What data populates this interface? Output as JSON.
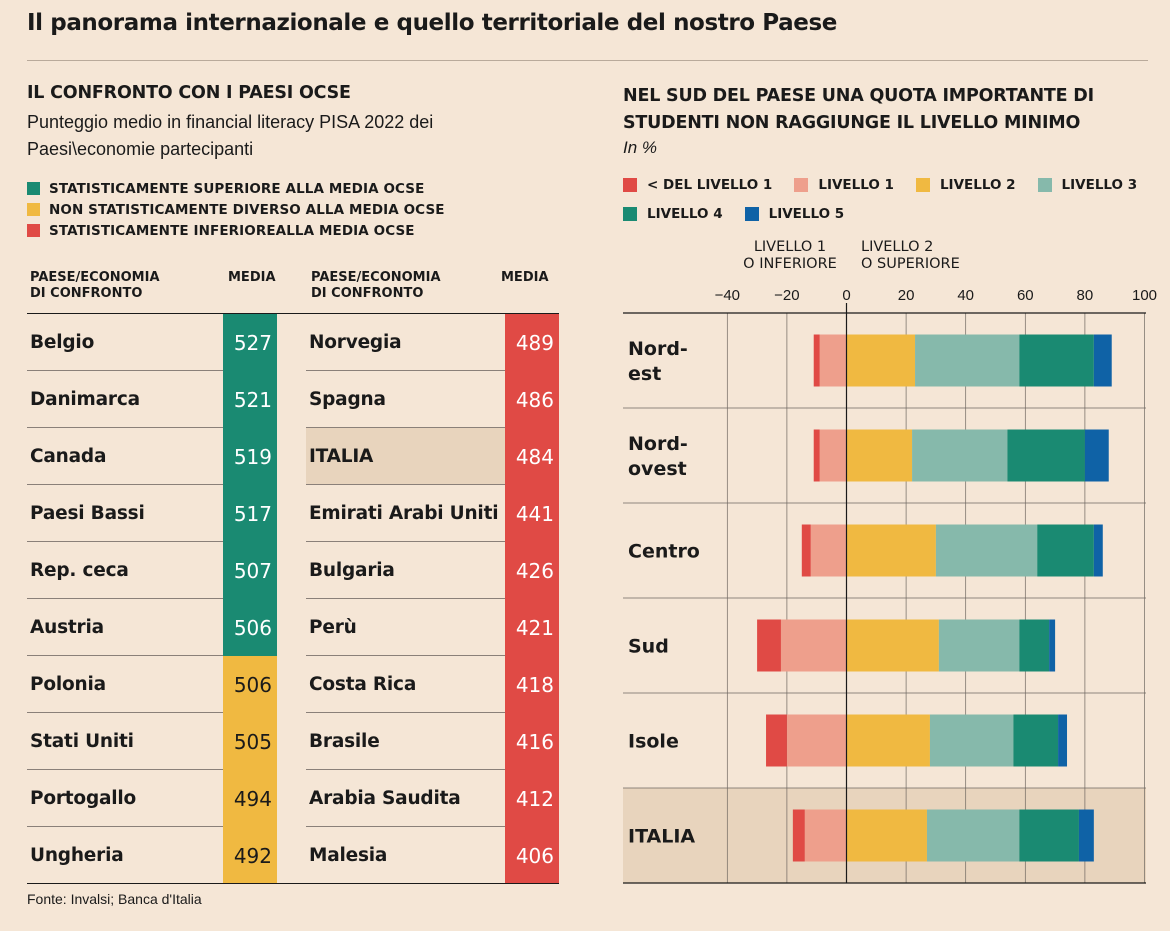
{
  "title": "Il panorama internazionale e quello territoriale del nostro Paese",
  "left": {
    "title": "IL CONFRONTO CON I PAESI OCSE",
    "subtitle": "Punteggio medio in financial literacy PISA 2022 dei Paesi\\economie partecipanti",
    "legend": [
      {
        "label": "STATISTICAMENTE SUPERIORE ALLA MEDIA OCSE",
        "color": "#1a8a72"
      },
      {
        "label": "NON STATISTICAMENTE DIVERSO ALLA MEDIA OCSE",
        "color": "#f0b941"
      },
      {
        "label": "STATISTICAMENTE INFERIOREALLA MEDIA OCSE",
        "color": "#e04a45"
      }
    ],
    "header_country": "PAESE/ECONOMIA\nDI CONFRONTO",
    "header_value": "MEDIA",
    "table_left": [
      {
        "country": "Belgio",
        "value": 527,
        "status": "superiore"
      },
      {
        "country": "Danimarca",
        "value": 521,
        "status": "superiore"
      },
      {
        "country": "Canada",
        "value": 519,
        "status": "superiore"
      },
      {
        "country": "Paesi Bassi",
        "value": 517,
        "status": "superiore"
      },
      {
        "country": "Rep. ceca",
        "value": 507,
        "status": "superiore"
      },
      {
        "country": "Austria",
        "value": 506,
        "status": "superiore"
      },
      {
        "country": "Polonia",
        "value": 506,
        "status": "non diverso"
      },
      {
        "country": "Stati Uniti",
        "value": 505,
        "status": "non diverso"
      },
      {
        "country": "Portogallo",
        "value": 494,
        "status": "non diverso"
      },
      {
        "country": "Ungheria",
        "value": 492,
        "status": "non diverso"
      }
    ],
    "table_right": [
      {
        "country": "Norvegia",
        "value": 489,
        "status": "inferiore"
      },
      {
        "country": "Spagna",
        "value": 486,
        "status": "inferiore"
      },
      {
        "country": "ITALIA",
        "value": 484,
        "status": "inferiore",
        "highlight": true
      },
      {
        "country": "Emirati Arabi Uniti",
        "value": 441,
        "status": "inferiore"
      },
      {
        "country": "Bulgaria",
        "value": 426,
        "status": "inferiore"
      },
      {
        "country": "Perù",
        "value": 421,
        "status": "inferiore"
      },
      {
        "country": "Costa Rica",
        "value": 418,
        "status": "inferiore"
      },
      {
        "country": "Brasile",
        "value": 416,
        "status": "inferiore"
      },
      {
        "country": "Arabia Saudita",
        "value": 412,
        "status": "inferiore"
      },
      {
        "country": "Malesia",
        "value": 406,
        "status": "inferiore"
      }
    ],
    "status_colors": {
      "superiore": "#1a8a72",
      "non diverso": "#f0b941",
      "inferiore": "#e04a45"
    }
  },
  "right": {
    "title": "NEL SUD DEL PAESE UNA QUOTA IMPORTANTE DI STUDENTI NON RAGGIUNGE IL LIVELLO MINIMO",
    "unit": "In %",
    "legend": [
      {
        "label": "< DEL LIVELLO 1",
        "color": "#e04a45"
      },
      {
        "label": "LIVELLO 1",
        "color": "#ee9f8c"
      },
      {
        "label": "LIVELLO 2",
        "color": "#f0b941"
      },
      {
        "label": "LIVELLO 3",
        "color": "#86b9ab"
      },
      {
        "label": "LIVELLO 4",
        "color": "#1a8a72"
      },
      {
        "label": "LIVELLO 5",
        "color": "#0f62a6"
      }
    ],
    "axis_group_left": "LIVELLO 1\nO INFERIORE",
    "axis_group_right": "LIVELLO 2\nO SUPERIORE"
  },
  "chart_data": {
    "type": "bar",
    "orientation": "horizontal-diverging-stacked",
    "xlim": [
      -40,
      100
    ],
    "xticks": [
      -40,
      -20,
      0,
      20,
      40,
      60,
      80,
      100
    ],
    "categories": [
      "Nord-\nest",
      "Nord-\novest",
      "Centro",
      "Sud",
      "Isole",
      "ITALIA"
    ],
    "highlight_category": "ITALIA",
    "grid": true,
    "series": [
      {
        "name": "< DEL LIVELLO 1",
        "values": [
          -2,
          -2,
          -3,
          -8,
          -7,
          -4
        ],
        "color": "#e04a45"
      },
      {
        "name": "LIVELLO 1",
        "values": [
          -9,
          -9,
          -12,
          -22,
          -20,
          -14
        ],
        "color": "#ee9f8c"
      },
      {
        "name": "LIVELLO 2",
        "values": [
          23,
          22,
          30,
          31,
          28,
          27
        ],
        "color": "#f0b941"
      },
      {
        "name": "LIVELLO 3",
        "values": [
          35,
          32,
          34,
          27,
          28,
          31
        ],
        "color": "#86b9ab"
      },
      {
        "name": "LIVELLO 4",
        "values": [
          25,
          26,
          19,
          10,
          15,
          20
        ],
        "color": "#1a8a72"
      },
      {
        "name": "LIVELLO 5",
        "values": [
          6,
          8,
          3,
          2,
          3,
          5
        ],
        "color": "#0f62a6"
      }
    ]
  },
  "source": "Fonte: Invalsi; Banca d'Italia"
}
